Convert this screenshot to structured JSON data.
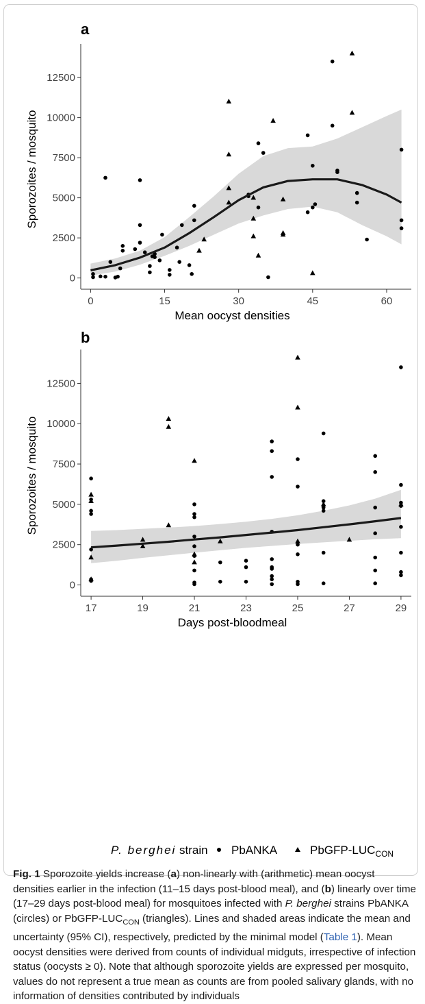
{
  "chart_data": [
    {
      "panel": "a",
      "type": "scatter",
      "xlabel": "Mean oocyst densities",
      "ylabel": "Sporozoites / mosquito",
      "xlim": [
        -2,
        65
      ],
      "ylim": [
        -700,
        14600
      ],
      "xticks": [
        0,
        15,
        30,
        45,
        60
      ],
      "yticks": [
        0,
        2500,
        5000,
        7500,
        10000,
        12500
      ],
      "grid": false,
      "series": [
        {
          "name": "PbANKA",
          "marker": "circle",
          "points": [
            [
              0.5,
              50
            ],
            [
              0.5,
              250
            ],
            [
              2,
              100
            ],
            [
              3,
              6250
            ],
            [
              3,
              80
            ],
            [
              4,
              1000
            ],
            [
              5,
              30
            ],
            [
              5.5,
              80
            ],
            [
              6,
              600
            ],
            [
              6.5,
              1700
            ],
            [
              6.5,
              2000
            ],
            [
              9,
              1800
            ],
            [
              10,
              6100
            ],
            [
              10,
              3300
            ],
            [
              10,
              2200
            ],
            [
              11,
              1600
            ],
            [
              12,
              750
            ],
            [
              12,
              350
            ],
            [
              12.5,
              1350
            ],
            [
              13,
              1500
            ],
            [
              13,
              1300
            ],
            [
              14,
              1100
            ],
            [
              14.5,
              2700
            ],
            [
              16,
              200
            ],
            [
              16,
              500
            ],
            [
              17.5,
              1900
            ],
            [
              18,
              1000
            ],
            [
              18.5,
              3300
            ],
            [
              20,
              800
            ],
            [
              20.5,
              250
            ],
            [
              21,
              3600
            ],
            [
              21,
              4500
            ],
            [
              32,
              5100
            ],
            [
              32,
              5200
            ],
            [
              34,
              8400
            ],
            [
              34,
              4400
            ],
            [
              35,
              7800
            ],
            [
              36,
              50
            ],
            [
              44,
              8900
            ],
            [
              44,
              4100
            ],
            [
              45,
              7000
            ],
            [
              45.5,
              4600
            ],
            [
              45,
              4400
            ],
            [
              49,
              13500
            ],
            [
              49,
              9500
            ],
            [
              50,
              6700
            ],
            [
              50,
              6600
            ],
            [
              54,
              5300
            ],
            [
              54,
              4700
            ],
            [
              56,
              2400
            ],
            [
              63,
              8000
            ],
            [
              63,
              3600
            ],
            [
              63,
              3100
            ]
          ]
        },
        {
          "name": "PbGFP-LUC_CON",
          "marker": "triangle",
          "points": [
            [
              22,
              1700
            ],
            [
              23,
              2400
            ],
            [
              28,
              11000
            ],
            [
              28,
              7700
            ],
            [
              28,
              5600
            ],
            [
              28,
              4700
            ],
            [
              33,
              5000
            ],
            [
              33,
              3700
            ],
            [
              33,
              2600
            ],
            [
              34,
              1400
            ],
            [
              37,
              9800
            ],
            [
              39,
              4900
            ],
            [
              39,
              2800
            ],
            [
              39,
              2700
            ],
            [
              45,
              300
            ],
            [
              53,
              14000
            ],
            [
              53,
              10300
            ]
          ]
        }
      ],
      "fit": {
        "x": [
          0,
          5,
          10,
          15,
          20,
          25,
          30,
          35,
          40,
          45,
          50,
          55,
          60,
          63
        ],
        "y": [
          480,
          800,
          1270,
          1900,
          2800,
          3800,
          4850,
          5650,
          6050,
          6150,
          6150,
          5800,
          5200,
          4700
        ],
        "lower": [
          150,
          400,
          830,
          1380,
          2000,
          2700,
          3400,
          3900,
          4300,
          4450,
          4100,
          3300,
          2600,
          2100
        ],
        "upper": [
          900,
          1220,
          1700,
          2550,
          3800,
          5100,
          6500,
          7600,
          8100,
          8200,
          8700,
          9400,
          10100,
          10500
        ]
      }
    },
    {
      "panel": "b",
      "type": "scatter",
      "xlabel": "Days post-bloodmeal",
      "ylabel": "Sporozoites / mosquito",
      "xlim": [
        16.6,
        29.4
      ],
      "ylim": [
        -700,
        14600
      ],
      "xticks": [
        17,
        19,
        21,
        23,
        25,
        27,
        29
      ],
      "yticks": [
        0,
        2500,
        5000,
        7500,
        10000,
        12500
      ],
      "grid": false,
      "series": [
        {
          "name": "PbANKA",
          "marker": "circle",
          "points": [
            [
              17,
              6600
            ],
            [
              17,
              5300
            ],
            [
              17,
              4600
            ],
            [
              17,
              4400
            ],
            [
              17,
              2200
            ],
            [
              17,
              350
            ],
            [
              17,
              250
            ],
            [
              21,
              5000
            ],
            [
              21,
              4400
            ],
            [
              21,
              4200
            ],
            [
              21,
              3000
            ],
            [
              21,
              2400
            ],
            [
              21,
              1800
            ],
            [
              21,
              900
            ],
            [
              21,
              150
            ],
            [
              21,
              50
            ],
            [
              22,
              1400
            ],
            [
              22,
              200
            ],
            [
              23,
              1500
            ],
            [
              23,
              1100
            ],
            [
              23,
              200
            ],
            [
              24,
              8900
            ],
            [
              24,
              8300
            ],
            [
              24,
              6700
            ],
            [
              24,
              3300
            ],
            [
              24,
              1600
            ],
            [
              24,
              1100
            ],
            [
              24,
              1000
            ],
            [
              24,
              550
            ],
            [
              24,
              350
            ],
            [
              24,
              50
            ],
            [
              25,
              7800
            ],
            [
              25,
              6100
            ],
            [
              25,
              2500
            ],
            [
              25,
              1900
            ],
            [
              25,
              200
            ],
            [
              25,
              50
            ],
            [
              26,
              9400
            ],
            [
              26,
              5200
            ],
            [
              26,
              4800
            ],
            [
              26,
              4600
            ],
            [
              26,
              2000
            ],
            [
              26,
              100
            ],
            [
              28,
              8000
            ],
            [
              28,
              7000
            ],
            [
              28,
              4800
            ],
            [
              28,
              3200
            ],
            [
              28,
              1700
            ],
            [
              28,
              900
            ],
            [
              28,
              100
            ],
            [
              29,
              13500
            ],
            [
              29,
              6200
            ],
            [
              29,
              5100
            ],
            [
              29,
              4900
            ],
            [
              29,
              3600
            ],
            [
              29,
              2000
            ],
            [
              29,
              800
            ],
            [
              29,
              600
            ]
          ]
        },
        {
          "name": "PbGFP-LUC_CON",
          "marker": "triangle",
          "points": [
            [
              17,
              5600
            ],
            [
              17,
              5200
            ],
            [
              17,
              1700
            ],
            [
              17,
              350
            ],
            [
              19,
              2800
            ],
            [
              19,
              2400
            ],
            [
              20,
              10300
            ],
            [
              20,
              9800
            ],
            [
              20,
              3700
            ],
            [
              21,
              7700
            ],
            [
              21,
              1900
            ],
            [
              21,
              1400
            ],
            [
              22,
              2700
            ],
            [
              25,
              14100
            ],
            [
              25,
              11000
            ],
            [
              25,
              2700
            ],
            [
              26,
              5000
            ],
            [
              27,
              2800
            ],
            [
              29,
              5000
            ]
          ]
        }
      ],
      "fit": {
        "x": [
          17,
          18,
          19,
          20,
          21,
          22,
          23,
          24,
          25,
          26,
          27,
          28,
          29
        ],
        "y": [
          2330,
          2440,
          2560,
          2680,
          2820,
          2950,
          3100,
          3250,
          3400,
          3580,
          3760,
          3950,
          4150
        ],
        "lower": [
          1350,
          1500,
          1680,
          1840,
          2000,
          2150,
          2300,
          2420,
          2540,
          2640,
          2740,
          2830,
          2900
        ],
        "upper": [
          3350,
          3400,
          3480,
          3560,
          3650,
          3780,
          3920,
          4100,
          4320,
          4600,
          4930,
          5350,
          5900
        ]
      }
    }
  ],
  "legend": {
    "title_italic": "P. berghei",
    "title_rest": " strain",
    "items": [
      {
        "label": "PbANKA",
        "marker": "circle"
      },
      {
        "label": "PbGFP-LUC",
        "sub": "CON",
        "marker": "triangle"
      }
    ]
  },
  "caption": {
    "label": "Fig. 1",
    "seg1": "  Sporozoite yields increase (",
    "a": "a",
    "seg2": ") non-linearly with (arithmetic) mean oocyst densities earlier in the infection (11–15 days post-blood meal), and (",
    "b": "b",
    "seg3": ") linearly over time (17–29 days post-blood meal) for mosquitoes infected with ",
    "species": "P. berghei",
    "seg4": " strains PbANKA (circles) or PbGFP-LUC",
    "sub1": "CON",
    "seg5": " (triangles). Lines and shaded areas indicate the mean and uncertainty (95% CI), respectively, predicted by the minimal model (",
    "table_ref": "Table 1",
    "seg6": "). Mean oocyst densities were derived from counts of individual midguts, irrespective of infection status (oocysts ≥ 0). Note that although sporozoite yields are expressed per mosquito, values do not represent a true mean as counts are from pooled salivary glands, with no information of densities contributed by individuals"
  },
  "colors": {
    "ink": "#000000",
    "band": "#d9d9d9",
    "fit": "#1a1a1a",
    "axis": "#333333",
    "link": "#2b5fb0"
  }
}
